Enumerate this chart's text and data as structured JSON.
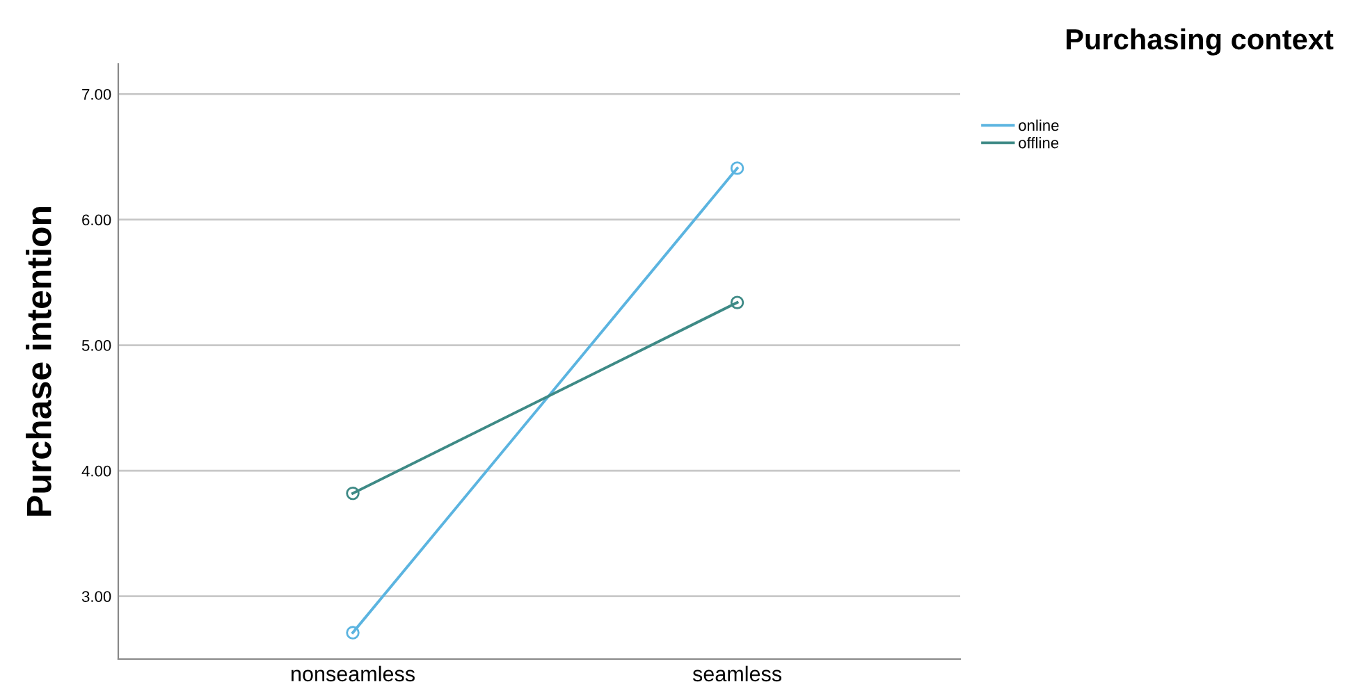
{
  "chart_data": {
    "type": "line",
    "ylabel": "Purchase intention",
    "legend_title": "Purchasing context",
    "categories": [
      "nonseamless",
      "seamless"
    ],
    "series": [
      {
        "name": "online",
        "color": "#5bb4e0",
        "values": [
          2.71,
          6.41
        ]
      },
      {
        "name": "offline",
        "color": "#3e8a86",
        "values": [
          3.82,
          5.34
        ]
      }
    ],
    "ylim": [
      2.5,
      7.24
    ],
    "yticks": [
      {
        "value": 3,
        "label": "3.00"
      },
      {
        "value": 4,
        "label": "4.00"
      },
      {
        "value": 5,
        "label": "5.00"
      },
      {
        "value": 6,
        "label": "6.00"
      },
      {
        "value": 7,
        "label": "7.00"
      }
    ],
    "grid": "y",
    "legend": "top right",
    "marker": "circle",
    "line_style": "solid"
  }
}
